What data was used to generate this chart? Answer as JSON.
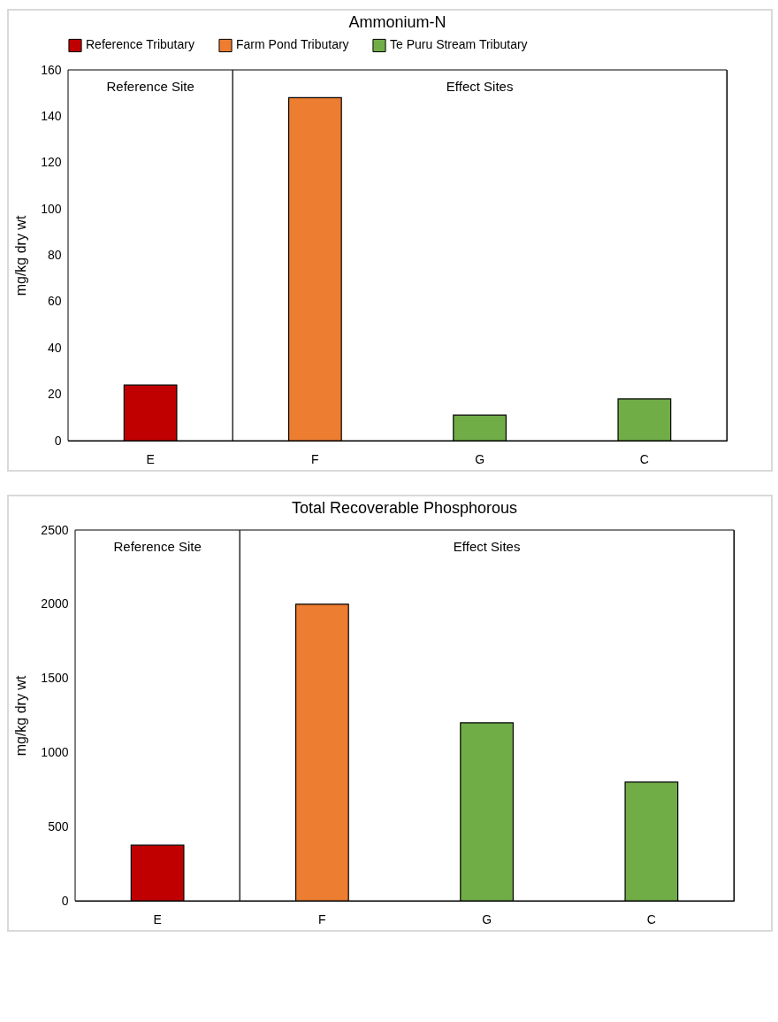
{
  "chart_data": [
    {
      "type": "bar",
      "title": "Ammonium-N",
      "ylabel": "mg/kg dry wt",
      "categories": [
        "E",
        "F",
        "G",
        "C"
      ],
      "series": [
        {
          "name": "Reference Tributary",
          "color": "#c00000",
          "values": [
            24,
            null,
            null,
            null
          ]
        },
        {
          "name": "Farm Pond Tributary",
          "color": "#ed7d31",
          "values": [
            null,
            148,
            null,
            null
          ]
        },
        {
          "name": "Te Puru Stream Tributary",
          "color": "#70ad47",
          "values": [
            null,
            null,
            11,
            18
          ]
        }
      ],
      "ylim": [
        0,
        160
      ],
      "yticks": [
        0,
        20,
        40,
        60,
        80,
        100,
        120,
        140,
        160
      ],
      "grid": false,
      "legend": "top",
      "bands": [
        {
          "axis": "x",
          "from": "E",
          "to": "E",
          "label": "Reference Site",
          "color": "#ffffff"
        },
        {
          "axis": "x",
          "from": "F",
          "to": "C",
          "label": "Effect Sites",
          "color": "#ffffff"
        }
      ]
    },
    {
      "type": "bar",
      "title": "Total Recoverable Phosphorous",
      "ylabel": "mg/kg dry wt",
      "categories": [
        "E",
        "F",
        "G",
        "C"
      ],
      "series": [
        {
          "color": "#c00000",
          "values": [
            375,
            null,
            null,
            null
          ]
        },
        {
          "color": "#ed7d31",
          "values": [
            null,
            2000,
            null,
            null
          ]
        },
        {
          "color": "#70ad47",
          "values": [
            null,
            null,
            1200,
            800
          ]
        }
      ],
      "ylim": [
        0,
        2500
      ],
      "yticks": [
        0,
        500,
        1000,
        1500,
        2000,
        2500
      ],
      "grid": false,
      "legend": false,
      "bands": [
        {
          "axis": "x",
          "from": "E",
          "to": "E",
          "label": "Reference Site",
          "color": "#ffffff"
        },
        {
          "axis": "x",
          "from": "F",
          "to": "C",
          "label": "Effect Sites",
          "color": "#ffffff"
        }
      ]
    }
  ]
}
